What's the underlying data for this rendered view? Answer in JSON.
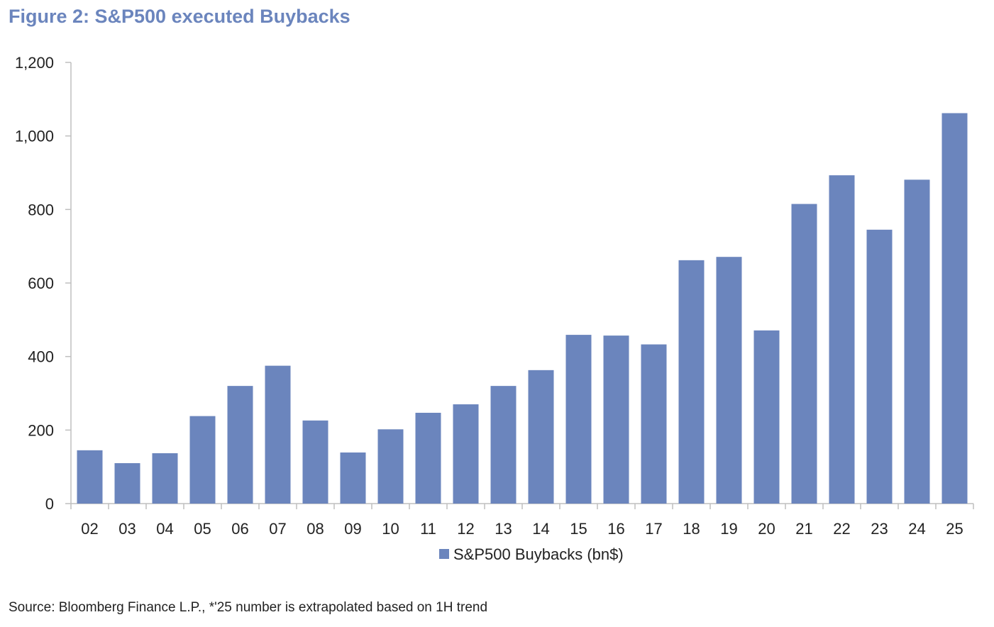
{
  "figure_title": "Figure 2: S&P500 executed Buybacks",
  "source_note": "Source: Bloomberg Finance L.P., *'25 number is extrapolated based on 1H trend",
  "colors": {
    "bar": "#6b85bd",
    "title": "#6b85bd",
    "axis": "#bfbfbf",
    "text": "#222222"
  },
  "chart_data": {
    "type": "bar",
    "title": "Figure 2: S&P500 executed Buybacks",
    "xlabel": "",
    "ylabel": "",
    "categories": [
      "02",
      "03",
      "04",
      "05",
      "06",
      "07",
      "08",
      "09",
      "10",
      "11",
      "12",
      "13",
      "14",
      "15",
      "16",
      "17",
      "18",
      "19",
      "20",
      "21",
      "22",
      "23",
      "24",
      "25"
    ],
    "series": [
      {
        "name": "S&P500 Buybacks (bn$)",
        "values": [
          145,
          110,
          137,
          238,
          320,
          375,
          226,
          139,
          202,
          247,
          270,
          320,
          363,
          459,
          457,
          433,
          662,
          671,
          471,
          815,
          893,
          745,
          881,
          1062
        ]
      }
    ],
    "ylim": [
      0,
      1200
    ],
    "yticks": [
      0,
      200,
      400,
      600,
      800,
      1000,
      1200
    ],
    "ytick_labels": [
      "0",
      "200",
      "400",
      "600",
      "800",
      "1,000",
      "1,200"
    ],
    "grid": false,
    "legend_position": "bottom-center"
  }
}
